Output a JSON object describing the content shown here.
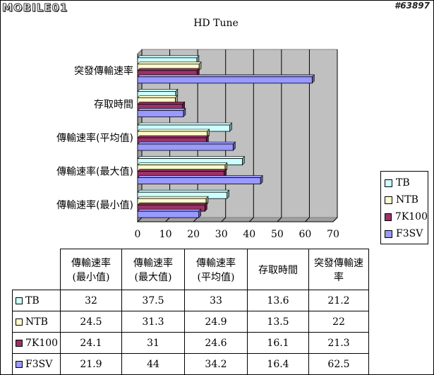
{
  "watermark": {
    "logo_text": "MOBILE01",
    "post_id": "#63897"
  },
  "chart_data": {
    "type": "bar",
    "orientation": "horizontal",
    "title": "HD Tune",
    "categories": [
      "傳輸速率(最小值)",
      "傳輸速率(最大值)",
      "傳輸速率(平均值)",
      "存取時間",
      "突發傳輸速率"
    ],
    "series": [
      {
        "name": "TB",
        "color": "#ccffff",
        "values": [
          32,
          37.5,
          33,
          13.6,
          21.2
        ]
      },
      {
        "name": "NTB",
        "color": "#ffffcc",
        "values": [
          24.5,
          31.3,
          24.9,
          13.5,
          22
        ]
      },
      {
        "name": "7K100",
        "color": "#993366",
        "values": [
          24.1,
          31,
          24.6,
          16.1,
          21.3
        ]
      },
      {
        "name": "F3SV",
        "color": "#9999ff",
        "values": [
          21.9,
          44,
          34.2,
          16.4,
          62.5
        ]
      }
    ],
    "xlim": [
      0,
      70
    ],
    "x_ticks": [
      "0",
      "10",
      "20",
      "30",
      "40",
      "50",
      "60",
      "70"
    ],
    "grid": true,
    "plot_background": "#c0c0c0",
    "legend_position": "right",
    "table": {
      "headers": [
        [
          "傳輸速率",
          "(最小值)"
        ],
        [
          "傳輸速率",
          "(最大值)"
        ],
        [
          "傳輸速率",
          "(平均值)"
        ],
        [
          "存取時間"
        ],
        [
          "突發傳輸速",
          "率"
        ]
      ],
      "rows": [
        [
          "32",
          "37.5",
          "33",
          "13.6",
          "21.2"
        ],
        [
          "24.5",
          "31.3",
          "24.9",
          "13.5",
          "22"
        ],
        [
          "24.1",
          "31",
          "24.6",
          "16.1",
          "21.3"
        ],
        [
          "21.9",
          "44",
          "34.2",
          "16.4",
          "62.5"
        ]
      ]
    }
  }
}
